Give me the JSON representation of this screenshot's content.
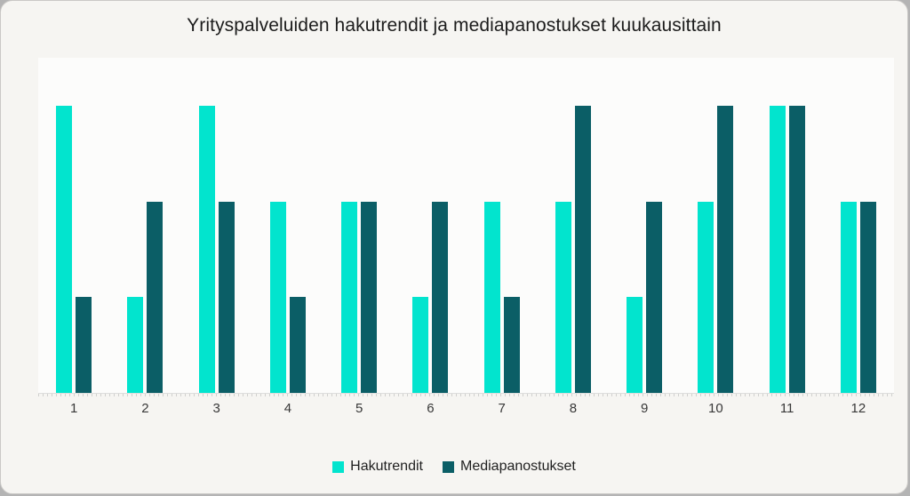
{
  "chart_data": {
    "type": "bar",
    "title": "Yrityspalveluiden hakutrendit ja mediapanostukset kuukausittain",
    "categories": [
      "1",
      "2",
      "3",
      "4",
      "5",
      "6",
      "7",
      "8",
      "9",
      "10",
      "11",
      "12"
    ],
    "series": [
      {
        "name": "Hakutrendit",
        "color": "#02e4ce",
        "values": [
          3,
          1,
          3,
          2,
          2,
          1,
          2,
          2,
          1,
          2,
          3,
          2
        ]
      },
      {
        "name": "Mediapanostukset",
        "color": "#0b5e66",
        "values": [
          1,
          2,
          2,
          1,
          2,
          2,
          1,
          3,
          2,
          3,
          3,
          2
        ]
      }
    ],
    "xlabel": "",
    "ylabel": "",
    "ylim": [
      0,
      3.5
    ],
    "grid": false,
    "legend_position": "bottom",
    "background_card": "#f6f5f2",
    "background_plot": "#fcfcfb"
  }
}
